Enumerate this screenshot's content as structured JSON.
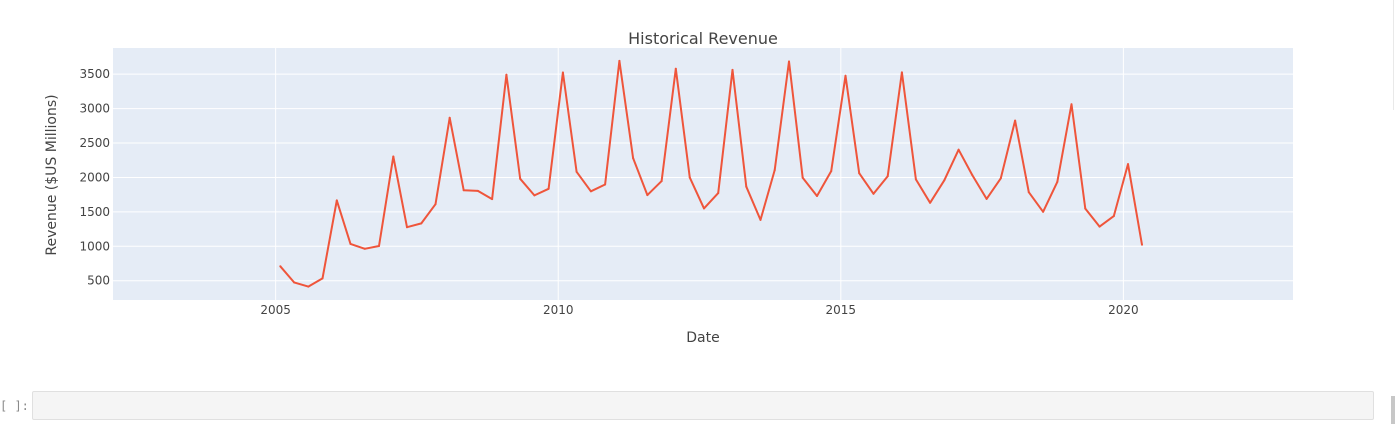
{
  "chart_data": {
    "type": "line",
    "title": "Historical Revenue",
    "xlabel": "Date",
    "ylabel": "Revenue ($US Millions)",
    "xlim": [
      "2002-02-15",
      "2023-01-01"
    ],
    "ylim": [
      220,
      3880
    ],
    "x_ticks": [
      "2005",
      "2010",
      "2015",
      "2020"
    ],
    "y_ticks": [
      500,
      1000,
      1500,
      2000,
      2500,
      3000,
      3500
    ],
    "grid": true,
    "background": "#E5ECF6",
    "line_color": "#EF553B",
    "series": [
      {
        "x": [
          "2005-01-31",
          "2005-04-30",
          "2005-07-31",
          "2005-10-31",
          "2006-01-31",
          "2006-04-30",
          "2006-07-31",
          "2006-10-31",
          "2007-01-31",
          "2007-04-30",
          "2007-07-31",
          "2007-10-31",
          "2008-01-31",
          "2008-04-30",
          "2008-07-31",
          "2008-10-31",
          "2009-01-31",
          "2009-04-30",
          "2009-07-31",
          "2009-10-31",
          "2010-01-31",
          "2010-04-30",
          "2010-07-31",
          "2010-10-31",
          "2011-01-31",
          "2011-04-30",
          "2011-07-31",
          "2011-10-31",
          "2012-01-31",
          "2012-04-30",
          "2012-07-31",
          "2012-10-31",
          "2013-01-31",
          "2013-04-30",
          "2013-07-31",
          "2013-10-31",
          "2014-01-31",
          "2014-04-30",
          "2014-07-31",
          "2014-10-31",
          "2015-01-31",
          "2015-04-30",
          "2015-07-31",
          "2015-10-31",
          "2016-01-31",
          "2016-04-30",
          "2016-07-31",
          "2016-10-31",
          "2017-01-31",
          "2017-04-30",
          "2017-07-31",
          "2017-10-31",
          "2018-01-31",
          "2018-04-30",
          "2018-07-31",
          "2018-10-31",
          "2019-01-31",
          "2019-04-30",
          "2019-07-31",
          "2019-10-31",
          "2020-01-31",
          "2020-04-30"
        ],
        "values": [
          709,
          475,
          415,
          534,
          1667,
          1035,
          963,
          1005,
          2304,
          1277,
          1332,
          1611,
          2866,
          1814,
          1804,
          1686,
          3492,
          1981,
          1739,
          1835,
          3524,
          2082,
          1799,
          1898,
          3693,
          2281,
          1744,
          1947,
          3579,
          1997,
          1550,
          1772,
          3562,
          1865,
          1384,
          2107,
          3684,
          1996,
          1731,
          2092,
          3476,
          2062,
          1762,
          2016,
          3525,
          1972,
          1632,
          1959,
          2403,
          2034,
          1688,
          1988,
          2825,
          1786,
          1501,
          1935,
          3063,
          1548,
          1286,
          1439,
          2194,
          1021
        ]
      }
    ]
  },
  "cell": {
    "prompt": "[ ]:"
  }
}
